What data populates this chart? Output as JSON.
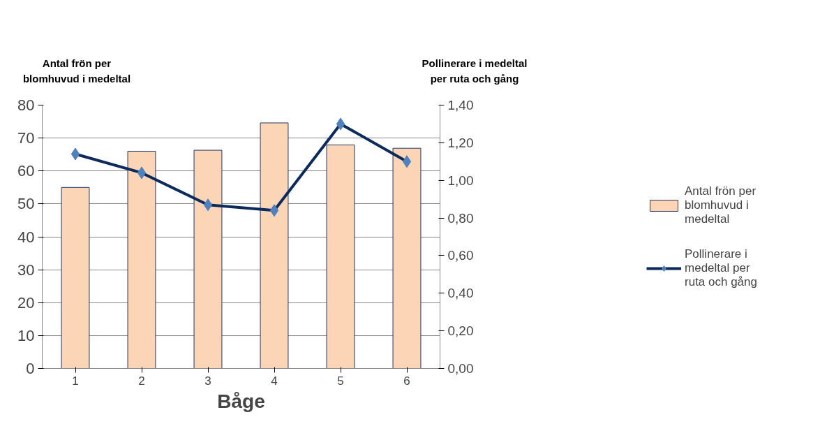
{
  "chart_data": {
    "type": "bar",
    "categories": [
      "1",
      "2",
      "3",
      "4",
      "5",
      "6"
    ],
    "xlabel": "Båge",
    "ylabel": "Antal frön per blomhuvud i medeltal",
    "y2label": "Pollinerare i medeltal per ruta och gång",
    "series": [
      {
        "name": "Antal frön per blomhuvud i medeltal",
        "color": "#fbd5b5",
        "values": [
          55.0,
          66.0,
          66.3,
          74.6,
          67.9,
          66.9
        ]
      },
      {
        "name": "Pollinerare i medeltal per ruta och gång",
        "type": "line",
        "axis": "y2",
        "color": "#0d2a5c",
        "values": [
          1.14,
          1.04,
          0.87,
          0.84,
          1.3,
          1.1
        ]
      }
    ],
    "ylim": [
      0,
      80
    ],
    "yticks": [
      0,
      10,
      20,
      30,
      40,
      50,
      60,
      70,
      80
    ],
    "y2lim": [
      0,
      1.4
    ],
    "y2ticks": [
      {
        "value": 0,
        "label": "0,00"
      },
      {
        "value": 0.2,
        "label": "0,20"
      },
      {
        "value": 0.4,
        "label": "0,40"
      },
      {
        "value": 0.6,
        "label": "0,60"
      },
      {
        "value": 0.8,
        "label": "0,80"
      },
      {
        "value": 1.0,
        "label": "1,00"
      },
      {
        "value": 1.2,
        "label": "1,20"
      },
      {
        "value": 1.4,
        "label": "1,40"
      }
    ],
    "grid": "y",
    "legend": "right",
    "marker": "diamond",
    "line_style": "solid"
  }
}
